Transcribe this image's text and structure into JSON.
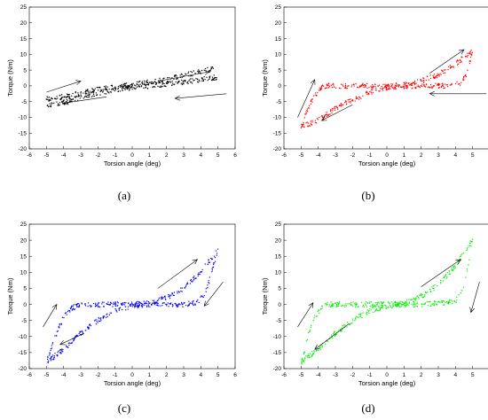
{
  "chart_data": [
    {
      "type": "scatter",
      "panel": "a",
      "caption": "(a)",
      "xlabel": "Torsion angle (deg)",
      "ylabel": "Torque (Nm)",
      "xlim": [
        -6,
        6
      ],
      "ylim": [
        -20,
        25
      ],
      "xticks": [
        "-6",
        "-5",
        "-4",
        "-3",
        "-2",
        "-1",
        "0",
        "1",
        "2",
        "3",
        "4",
        "5",
        "6"
      ],
      "yticks": [
        "-20",
        "-15",
        "-10",
        "-5",
        "0",
        "5",
        "10",
        "15",
        "20",
        "25"
      ],
      "color": "#000000",
      "hysteresis": {
        "branch_upper": [
          [
            -5,
            -4.2
          ],
          [
            -4,
            -3.5
          ],
          [
            -3,
            -2.3
          ],
          [
            -2,
            -1.2
          ],
          [
            -1,
            -0.4
          ],
          [
            0,
            0.3
          ],
          [
            1,
            1.2
          ],
          [
            2,
            2.2
          ],
          [
            3,
            3.3
          ],
          [
            4,
            4.5
          ],
          [
            5,
            5.8
          ]
        ],
        "branch_lower": [
          [
            -5,
            -6.5
          ],
          [
            -4,
            -5.2
          ],
          [
            -3,
            -3.6
          ],
          [
            -2,
            -2.3
          ],
          [
            -1,
            -1.2
          ],
          [
            0,
            -0.5
          ],
          [
            1,
            0.0
          ],
          [
            2,
            0.6
          ],
          [
            3,
            1.2
          ],
          [
            4,
            2.0
          ],
          [
            5,
            2.8
          ]
        ]
      },
      "arrows": [
        [
          -5,
          -2
        ],
        [
          -3,
          1.5
        ],
        [
          1.5,
          1.5
        ],
        [
          4.5,
          4.5
        ],
        [
          -1.5,
          -3.5
        ],
        [
          -4,
          -5.5
        ],
        [
          5.5,
          -2.5
        ],
        [
          2.5,
          -4
        ]
      ]
    },
    {
      "type": "scatter",
      "panel": "b",
      "caption": "(b)",
      "xlabel": "Torsion angle (deg)",
      "ylabel": "Torque (Nm)",
      "xlim": [
        -6,
        6
      ],
      "ylim": [
        -20,
        25
      ],
      "xticks": [
        "-6",
        "-5",
        "-4",
        "-3",
        "-2",
        "-1",
        "0",
        "1",
        "2",
        "3",
        "4",
        "5",
        "6"
      ],
      "yticks": [
        "-20",
        "-15",
        "-10",
        "-5",
        "0",
        "5",
        "10",
        "15",
        "20",
        "25"
      ],
      "color": "#ff0000",
      "hysteresis": {
        "branch_upper": [
          [
            -5,
            -13
          ],
          [
            -4.6,
            -7
          ],
          [
            -4.2,
            -3
          ],
          [
            -3.8,
            -0.5
          ],
          [
            -3.4,
            0
          ],
          [
            -2,
            0
          ],
          [
            0,
            0
          ],
          [
            1,
            0.3
          ],
          [
            2,
            1.5
          ],
          [
            3,
            3.5
          ],
          [
            4,
            7
          ],
          [
            5,
            11
          ]
        ],
        "branch_lower": [
          [
            -5,
            -13
          ],
          [
            -4,
            -11
          ],
          [
            -3,
            -7
          ],
          [
            -2,
            -4.5
          ],
          [
            -1,
            -2
          ],
          [
            0,
            -0.5
          ],
          [
            1,
            -0.1
          ],
          [
            2,
            0
          ],
          [
            3.5,
            0
          ],
          [
            4.2,
            0.5
          ],
          [
            4.6,
            3
          ],
          [
            5,
            11
          ]
        ]
      },
      "arrows": [
        [
          -5.2,
          -10
        ],
        [
          -4.2,
          2
        ],
        [
          2.5,
          4
        ],
        [
          4.5,
          11.5
        ],
        [
          -2,
          -6
        ],
        [
          -3.8,
          -11
        ],
        [
          5.8,
          -2.5
        ],
        [
          2.5,
          -2.5
        ]
      ]
    },
    {
      "type": "scatter",
      "panel": "c",
      "caption": "(c)",
      "xlabel": "Torsion angle (deg)",
      "ylabel": "Torque (Nm)",
      "xlim": [
        -6,
        6
      ],
      "ylim": [
        -20,
        25
      ],
      "xticks": [
        "-6",
        "-5",
        "-4",
        "-3",
        "-2",
        "-1",
        "0",
        "1",
        "2",
        "3",
        "4",
        "5",
        "6"
      ],
      "yticks": [
        "-20",
        "-15",
        "-10",
        "-5",
        "0",
        "5",
        "10",
        "15",
        "20",
        "25"
      ],
      "color": "#0000ff",
      "hysteresis": {
        "branch_upper": [
          [
            -5,
            -18
          ],
          [
            -4.5,
            -10
          ],
          [
            -4,
            -4
          ],
          [
            -3.5,
            -1
          ],
          [
            -3,
            -0.2
          ],
          [
            -2,
            0
          ],
          [
            0,
            0
          ],
          [
            1,
            0.3
          ],
          [
            2,
            2
          ],
          [
            3,
            5
          ],
          [
            4,
            10
          ],
          [
            5,
            17
          ]
        ],
        "branch_lower": [
          [
            -5,
            -18
          ],
          [
            -4,
            -14
          ],
          [
            -3,
            -9
          ],
          [
            -2,
            -5
          ],
          [
            -1,
            -2
          ],
          [
            0,
            -0.5
          ],
          [
            1,
            0
          ],
          [
            2,
            0
          ],
          [
            3,
            0
          ],
          [
            3.8,
            0.5
          ],
          [
            4.3,
            4
          ],
          [
            5,
            17
          ]
        ]
      },
      "arrows": [
        [
          -5.2,
          -7
        ],
        [
          -4.4,
          0
        ],
        [
          1.5,
          5
        ],
        [
          3.8,
          14
        ],
        [
          -2.8,
          -9
        ],
        [
          -4.2,
          -12.5
        ],
        [
          5.3,
          7
        ],
        [
          4.2,
          -0.5
        ]
      ]
    },
    {
      "type": "scatter",
      "panel": "d",
      "caption": "(d)",
      "xlabel": "Torsion angle (deg)",
      "ylabel": "Torque (Nm)",
      "xlim": [
        -6,
        6
      ],
      "ylim": [
        -20,
        25
      ],
      "xticks": [
        "-6",
        "-5",
        "-4",
        "-3",
        "-2",
        "-1",
        "0",
        "1",
        "2",
        "3",
        "4",
        "5",
        "6"
      ],
      "yticks": [
        "-20",
        "-15",
        "-10",
        "-5",
        "0",
        "5",
        "10",
        "15",
        "20",
        "25"
      ],
      "color": "#00ee00",
      "hysteresis": {
        "branch_upper": [
          [
            -5,
            -18
          ],
          [
            -4.6,
            -10
          ],
          [
            -4.2,
            -4
          ],
          [
            -3.8,
            -0.8
          ],
          [
            -3.4,
            0
          ],
          [
            -2,
            0
          ],
          [
            0,
            0
          ],
          [
            1,
            0.3
          ],
          [
            2,
            2.5
          ],
          [
            3,
            6
          ],
          [
            4,
            12
          ],
          [
            5,
            20
          ]
        ],
        "branch_lower": [
          [
            -5,
            -18
          ],
          [
            -4,
            -14
          ],
          [
            -3,
            -9
          ],
          [
            -2,
            -5
          ],
          [
            -1,
            -2
          ],
          [
            0,
            -0.5
          ],
          [
            1,
            0
          ],
          [
            2,
            0
          ],
          [
            3,
            0.3
          ],
          [
            4,
            1
          ],
          [
            4.5,
            6
          ],
          [
            5,
            20
          ]
        ]
      },
      "arrows": [
        [
          -5.2,
          -7
        ],
        [
          -4.3,
          0.5
        ],
        [
          2,
          5.5
        ],
        [
          4.3,
          14
        ],
        [
          -2.2,
          -6
        ],
        [
          -4.2,
          -14
        ],
        [
          5.4,
          7
        ],
        [
          4.9,
          -2.5
        ]
      ]
    }
  ]
}
